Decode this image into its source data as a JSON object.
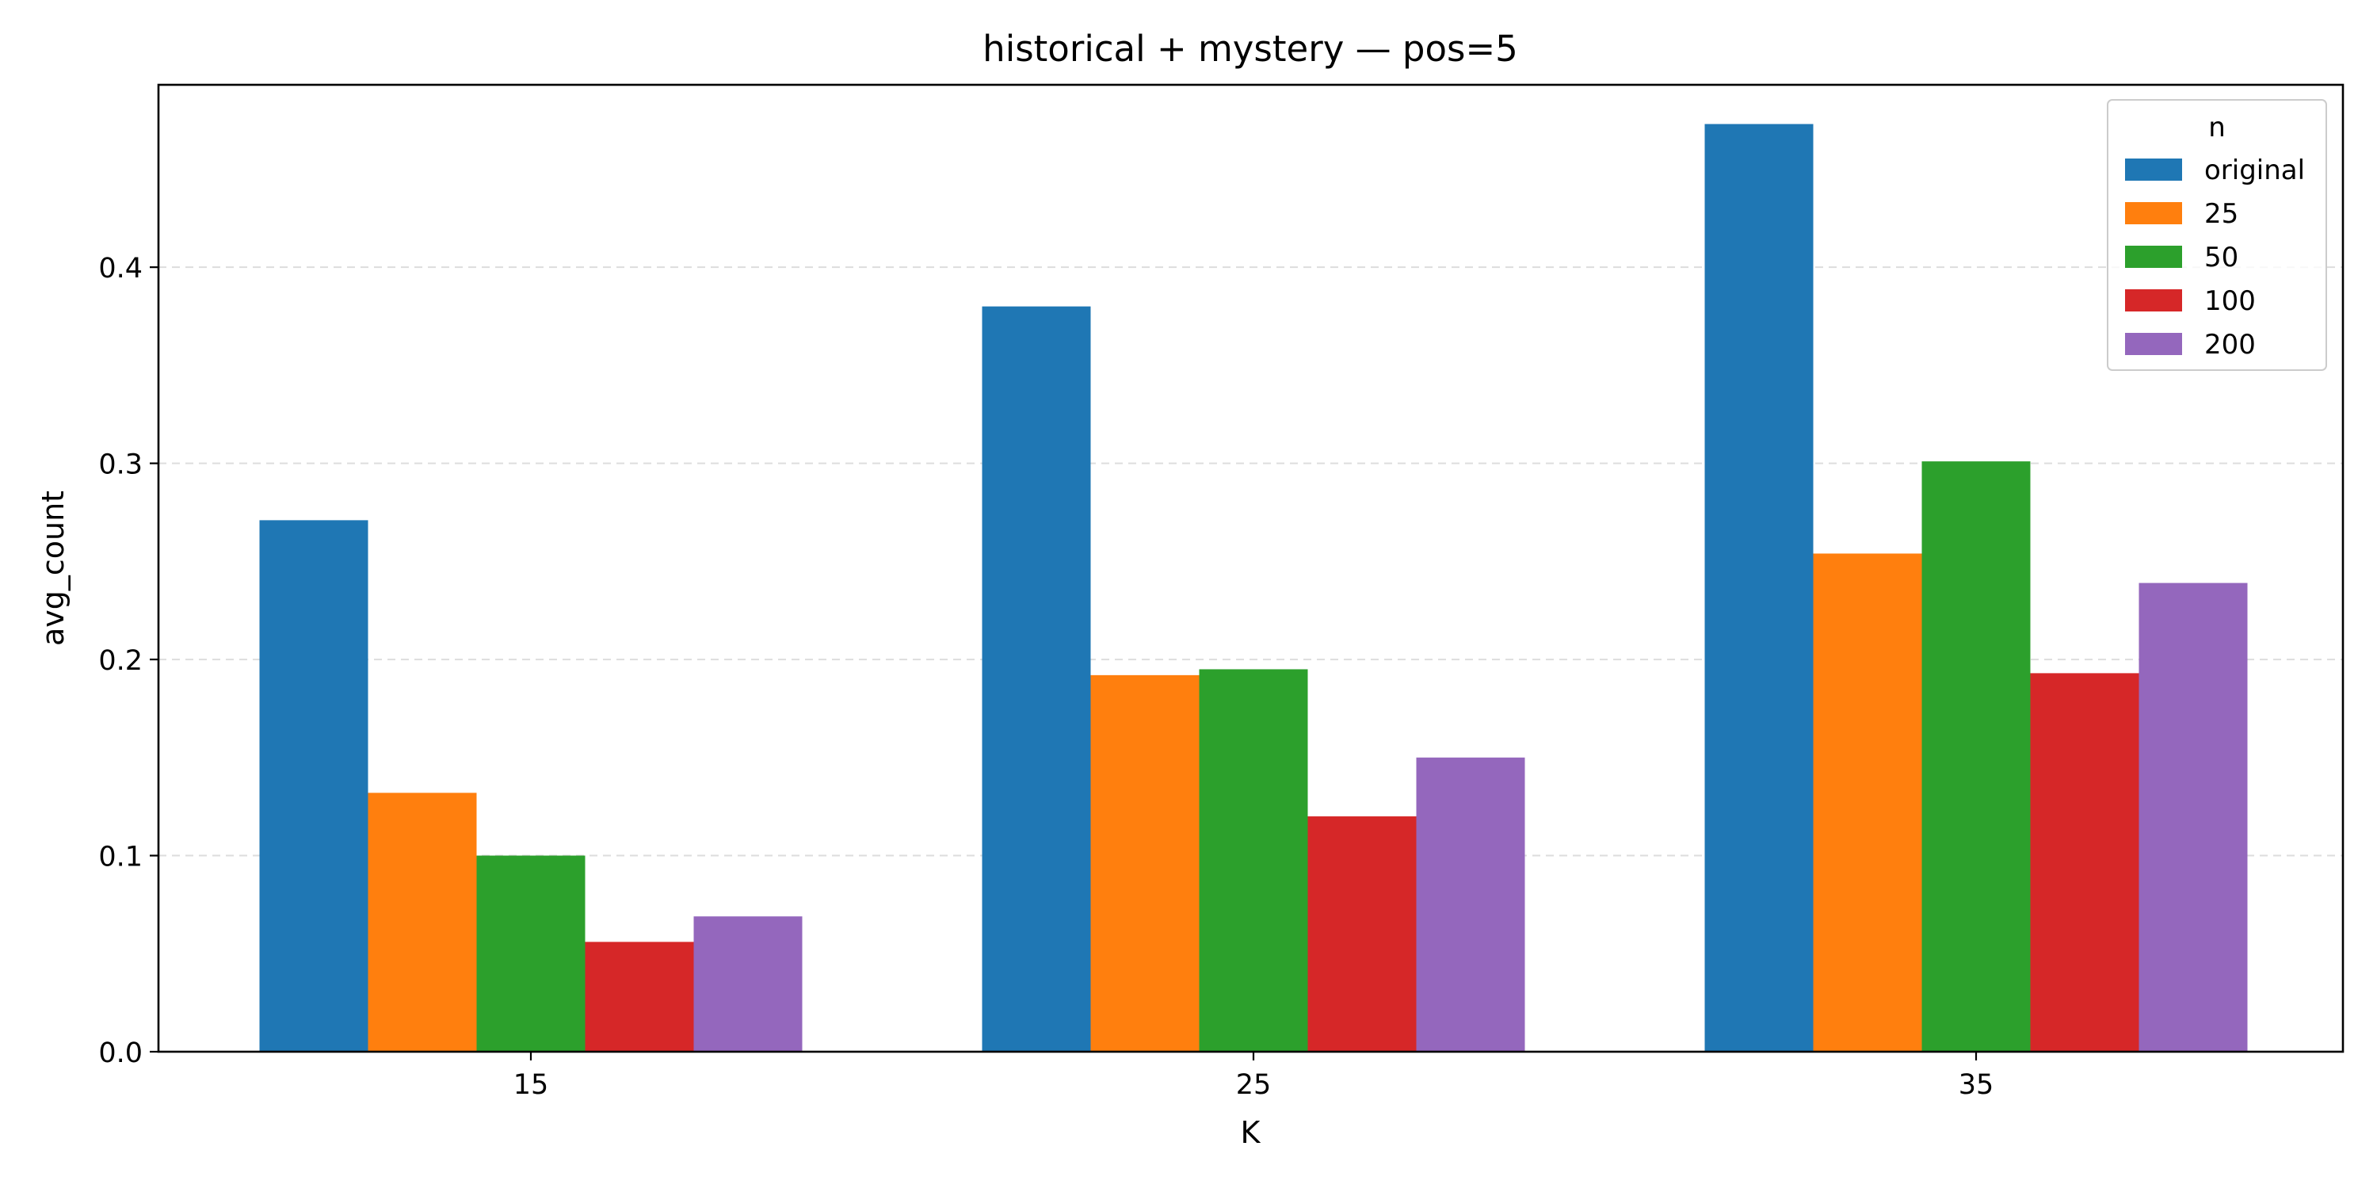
{
  "chart_data": {
    "type": "bar",
    "title": "historical + mystery — pos=5",
    "xlabel": "K",
    "ylabel": "avg_count",
    "categories": [
      "15",
      "25",
      "35"
    ],
    "ylim": [
      0,
      0.493
    ],
    "yticks": [
      "0.0",
      "0.1",
      "0.2",
      "0.3",
      "0.4"
    ],
    "grid": true,
    "legend_title": "n",
    "legend_position": "top-right",
    "series": [
      {
        "name": "original",
        "color": "#1f77b4",
        "values": [
          0.271,
          0.38,
          0.473
        ]
      },
      {
        "name": "25",
        "color": "#ff7f0e",
        "values": [
          0.132,
          0.192,
          0.254
        ]
      },
      {
        "name": "50",
        "color": "#2ca02c",
        "values": [
          0.1,
          0.195,
          0.301
        ]
      },
      {
        "name": "100",
        "color": "#d62728",
        "values": [
          0.056,
          0.12,
          0.193
        ]
      },
      {
        "name": "200",
        "color": "#9467bd",
        "values": [
          0.069,
          0.15,
          0.239
        ]
      }
    ]
  }
}
